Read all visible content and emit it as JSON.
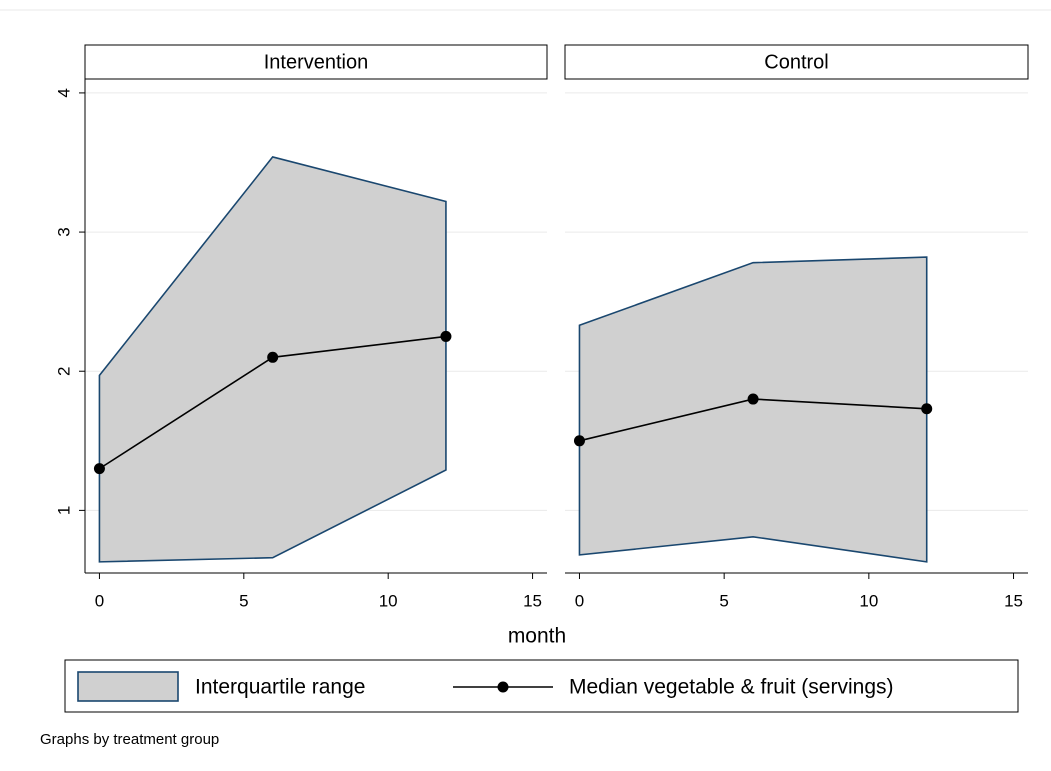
{
  "chart_data": [
    {
      "type": "area-line",
      "title": "Intervention",
      "x": [
        0,
        6,
        12
      ],
      "xlim": [
        -0.5,
        15.5
      ],
      "xticks": [
        0,
        5,
        10,
        15
      ],
      "ylim": [
        0.55,
        4.1
      ],
      "yticks": [
        1,
        2,
        3,
        4
      ],
      "grid": true,
      "series": [
        {
          "name": "Interquartile range",
          "color": "#d0d0d0",
          "edge_color": "#1a476f",
          "lower": [
            0.63,
            0.66,
            1.29
          ],
          "upper": [
            1.97,
            3.54,
            3.22
          ]
        },
        {
          "name": "Median vegetable & fruit (servings)",
          "color": "#000000",
          "values": [
            1.3,
            2.1,
            2.25
          ]
        }
      ]
    },
    {
      "type": "area-line",
      "title": "Control",
      "x": [
        0,
        6,
        12
      ],
      "xlim": [
        -0.5,
        15.5
      ],
      "xticks": [
        0,
        5,
        10,
        15
      ],
      "ylim": [
        0.55,
        4.1
      ],
      "yticks": [
        1,
        2,
        3,
        4
      ],
      "grid": true,
      "series": [
        {
          "name": "Interquartile range",
          "color": "#d0d0d0",
          "edge_color": "#1a476f",
          "lower": [
            0.68,
            0.81,
            0.63
          ],
          "upper": [
            2.33,
            2.78,
            2.82
          ]
        },
        {
          "name": "Median vegetable & fruit (servings)",
          "color": "#000000",
          "values": [
            1.5,
            1.8,
            1.73
          ]
        }
      ]
    }
  ],
  "x_label": "month",
  "note": "Graphs by treatment group",
  "legend": "bottom"
}
